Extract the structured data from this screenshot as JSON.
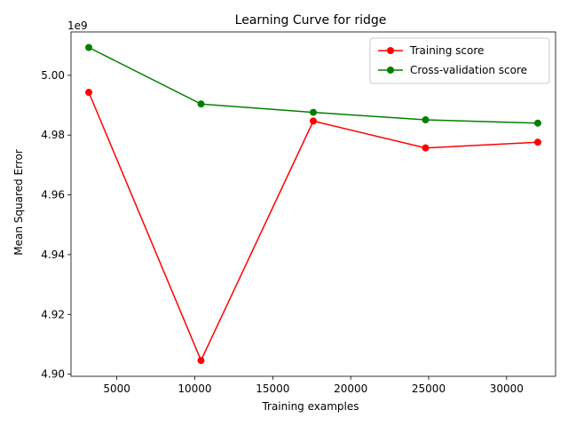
{
  "chart_data": {
    "type": "line",
    "title": "Learning Curve for ridge",
    "xlabel": "Training examples",
    "ylabel": "Mean Squared Error",
    "y_offset_label": "1e9",
    "x": [
      3200,
      10400,
      17600,
      24800,
      32000
    ],
    "series": [
      {
        "name": "Training score",
        "color": "#ff0000",
        "values": [
          4.9943,
          4.9046,
          4.9847,
          4.9757,
          4.9776
        ]
      },
      {
        "name": "Cross-validation score",
        "color": "#008000",
        "values": [
          5.0093,
          4.9904,
          4.9876,
          4.9851,
          4.984
        ]
      }
    ],
    "xlim": [
      2060,
      33140
    ],
    "ylim": [
      4.8993,
      5.0145
    ],
    "xticks": [
      5000,
      10000,
      15000,
      20000,
      25000,
      30000
    ],
    "xtick_labels": [
      "5000",
      "10000",
      "15000",
      "20000",
      "25000",
      "30000"
    ],
    "yticks": [
      4.9,
      4.92,
      4.94,
      4.96,
      4.98,
      5.0
    ],
    "ytick_labels": [
      "4.90",
      "4.92",
      "4.94",
      "4.96",
      "4.98",
      "5.00"
    ],
    "grid": false,
    "legend_position": "top-right"
  }
}
